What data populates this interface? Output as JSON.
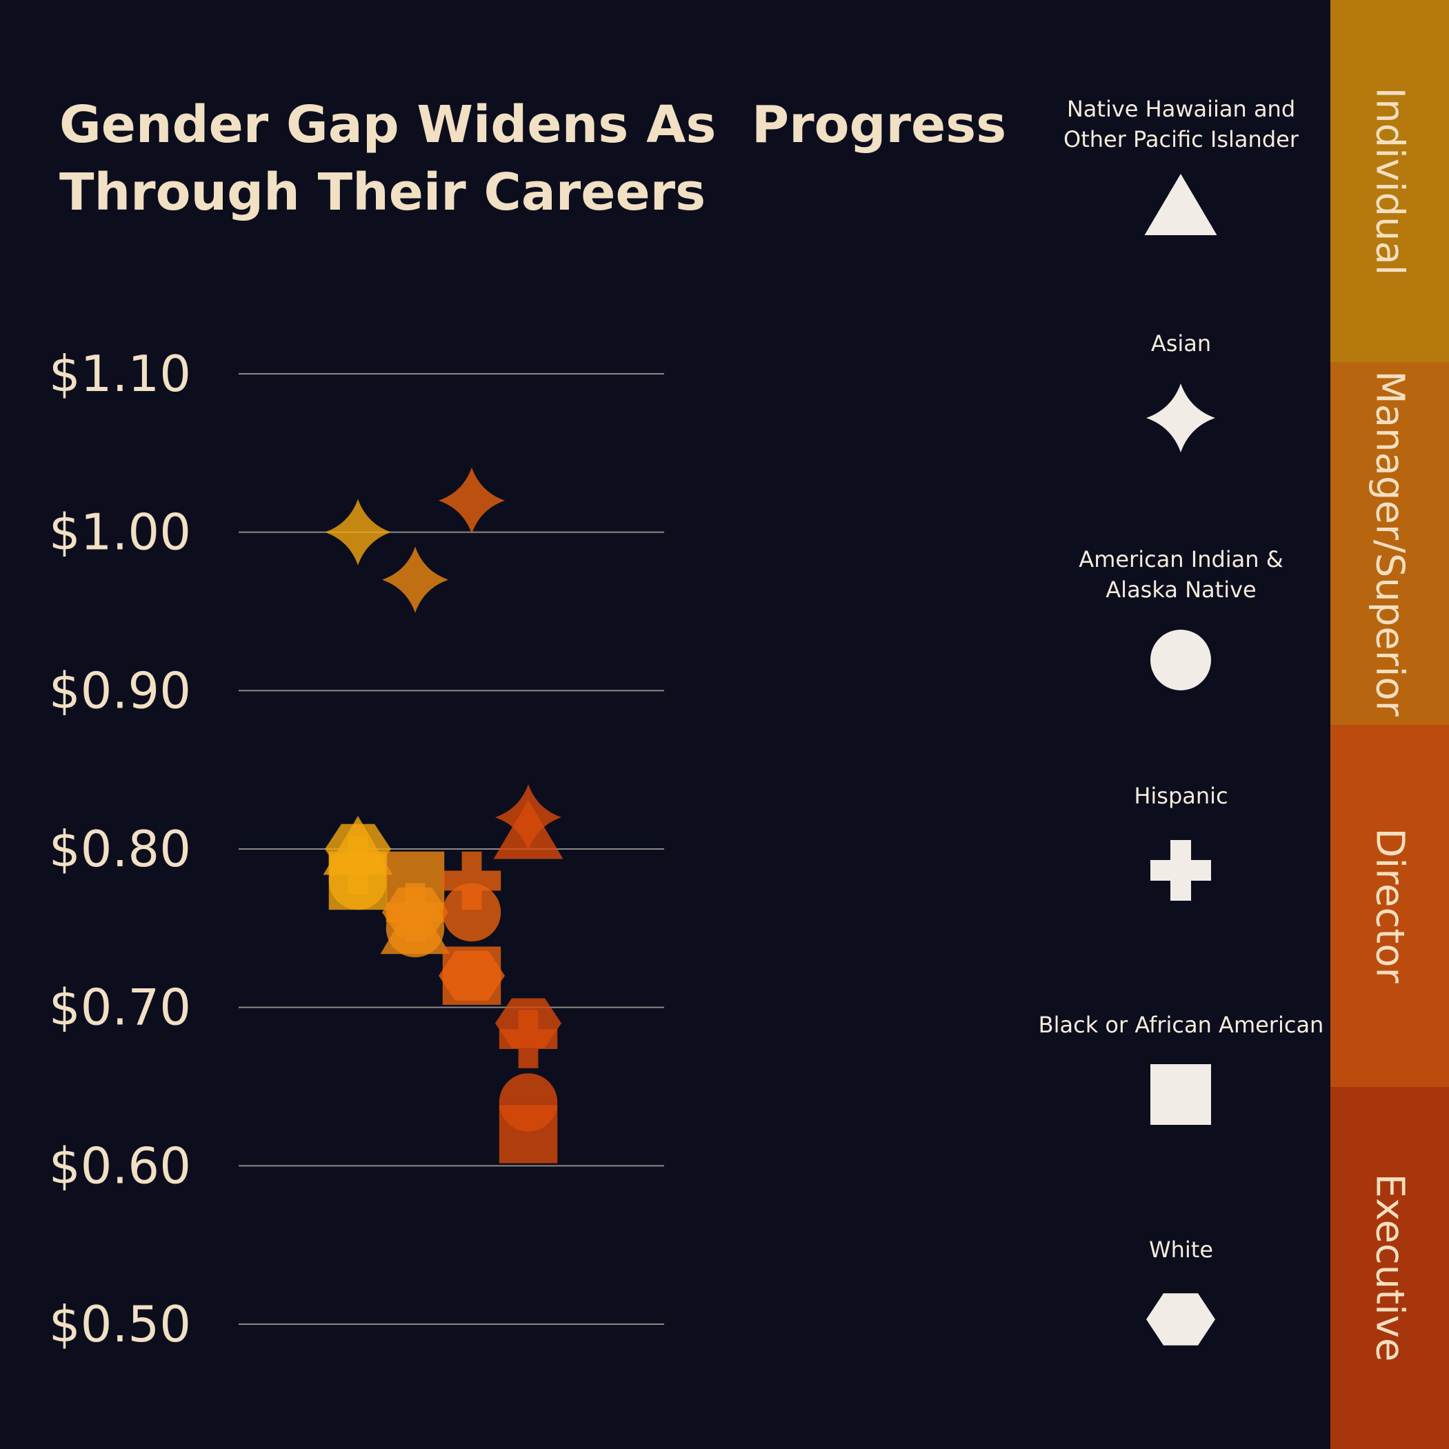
{
  "page": {
    "background": "#0c0e1e",
    "grid_color": "#8c8a86",
    "text_color": "#f2e0c4"
  },
  "chart_data": {
    "type": "scatter",
    "title_lines": [
      "Gender Gap Widens As  Progress",
      "Through Their Careers"
    ],
    "xlabel": "",
    "ylabel": "",
    "ylim": [
      0.5,
      1.1
    ],
    "yticks": [
      1.1,
      1.0,
      0.9,
      0.8,
      0.7,
      0.6,
      0.5
    ],
    "ytick_labels": [
      "$1.10",
      "$1.00",
      "$0.90",
      "$0.80",
      "$0.70",
      "$0.60",
      "$0.50"
    ],
    "grid": true,
    "levels": [
      "Individual",
      "Manager/Superior",
      "Director",
      "Executive"
    ],
    "level_colors": [
      "#f2a60e",
      "#ee8a10",
      "#e8620e",
      "#d84a0a"
    ],
    "band_colors": [
      "#b5790e",
      "#b8650f",
      "#bc4c0d",
      "#a8360c"
    ],
    "groups": [
      {
        "name": "Native Hawaiian and Other Pacific Islander",
        "shape": "triangle"
      },
      {
        "name": "Asian",
        "shape": "star"
      },
      {
        "name": "American Indian & Alaska Native",
        "shape": "circle"
      },
      {
        "name": "Hispanic",
        "shape": "cross"
      },
      {
        "name": "Black or African American",
        "shape": "square"
      },
      {
        "name": "White",
        "shape": "hexagon"
      }
    ],
    "points": [
      {
        "level": "Individual",
        "group": "Native Hawaiian and Other Pacific Islander",
        "shape": "triangle",
        "value": 0.8
      },
      {
        "level": "Individual",
        "group": "Asian",
        "shape": "star",
        "value": 1.0
      },
      {
        "level": "Individual",
        "group": "American Indian & Alaska Native",
        "shape": "circle",
        "value": 0.78
      },
      {
        "level": "Individual",
        "group": "Hispanic",
        "shape": "cross",
        "value": 0.79
      },
      {
        "level": "Individual",
        "group": "Black or African American",
        "shape": "square",
        "value": 0.78
      },
      {
        "level": "Individual",
        "group": "White",
        "shape": "hexagon",
        "value": 0.8
      },
      {
        "level": "Manager/Superior",
        "group": "Native Hawaiian and Other Pacific Islander",
        "shape": "triangle",
        "value": 0.75
      },
      {
        "level": "Manager/Superior",
        "group": "Asian",
        "shape": "star",
        "value": 0.97
      },
      {
        "level": "Manager/Superior",
        "group": "American Indian & Alaska Native",
        "shape": "circle",
        "value": 0.75
      },
      {
        "level": "Manager/Superior",
        "group": "Hispanic",
        "shape": "cross",
        "value": 0.76
      },
      {
        "level": "Manager/Superior",
        "group": "Black or African American",
        "shape": "square",
        "value": 0.78
      },
      {
        "level": "Manager/Superior",
        "group": "White",
        "shape": "hexagon",
        "value": 0.76
      },
      {
        "level": "Director",
        "group": "Asian",
        "shape": "star",
        "value": 1.02
      },
      {
        "level": "Director",
        "group": "Hispanic",
        "shape": "cross",
        "value": 0.78
      },
      {
        "level": "Director",
        "group": "American Indian & Alaska Native",
        "shape": "circle",
        "value": 0.76
      },
      {
        "level": "Director",
        "group": "Black or African American",
        "shape": "square",
        "value": 0.72
      },
      {
        "level": "Director",
        "group": "White",
        "shape": "hexagon",
        "value": 0.72
      },
      {
        "level": "Executive",
        "group": "Native Hawaiian and Other Pacific Islander",
        "shape": "triangle",
        "value": 0.81
      },
      {
        "level": "Executive",
        "group": "Asian",
        "shape": "star",
        "value": 0.82
      },
      {
        "level": "Executive",
        "group": "White",
        "shape": "hexagon",
        "value": 0.69
      },
      {
        "level": "Executive",
        "group": "Hispanic",
        "shape": "cross",
        "value": 0.68
      },
      {
        "level": "Executive",
        "group": "American Indian & Alaska Native",
        "shape": "circle",
        "value": 0.64
      },
      {
        "level": "Executive",
        "group": "Black or African American",
        "shape": "square",
        "value": 0.62
      }
    ]
  },
  "legend": {
    "items": [
      {
        "line1": "Native Hawaiian and",
        "line2": "Other Pacific Islander",
        "icon": "triangle-icon"
      },
      {
        "line1": "Asian",
        "line2": "",
        "icon": "star-icon"
      },
      {
        "line1": "American Indian &",
        "line2": "Alaska Native",
        "icon": "circle-icon"
      },
      {
        "line1": "Hispanic",
        "line2": "",
        "icon": "cross-icon"
      },
      {
        "line1": "Black or African American",
        "line2": "",
        "icon": "square-icon"
      },
      {
        "line1": "White",
        "line2": "",
        "icon": "hexagon-icon"
      }
    ],
    "marker_color": "#f1ede6"
  },
  "side_bar": {
    "labels": [
      "Individual",
      "Manager/Superior",
      "Director",
      "Executive"
    ],
    "label_color": "#f4dfc0"
  }
}
